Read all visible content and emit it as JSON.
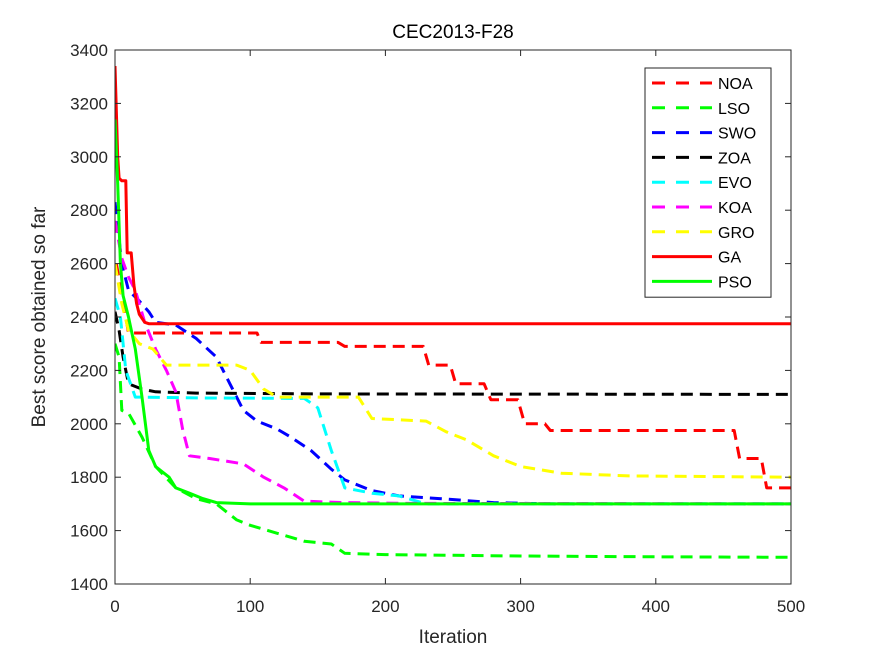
{
  "chart_data": {
    "type": "line",
    "title": "CEC2013-F28",
    "xlabel": "Iteration",
    "ylabel": "Best score obtained so far",
    "xlim": [
      0,
      500
    ],
    "ylim": [
      1400,
      3400
    ],
    "xticks": [
      0,
      100,
      200,
      300,
      400,
      500
    ],
    "yticks": [
      1400,
      1600,
      1800,
      2000,
      2200,
      2400,
      2600,
      2800,
      3000,
      3200,
      3400
    ],
    "xtick_labels": [
      "0",
      "100",
      "200",
      "300",
      "400",
      "500"
    ],
    "ytick_labels": [
      "1400",
      "1600",
      "1800",
      "2000",
      "2200",
      "2400",
      "2600",
      "2800",
      "3000",
      "3200",
      "3400"
    ],
    "grid": false,
    "legend_position": "top-right",
    "series": [
      {
        "name": "NOA",
        "color": "#ff0000",
        "dash": "dashed",
        "points": [
          [
            1,
            2600
          ],
          [
            5,
            2480
          ],
          [
            8,
            2400
          ],
          [
            10,
            2340
          ],
          [
            105,
            2340
          ],
          [
            108,
            2305
          ],
          [
            165,
            2305
          ],
          [
            170,
            2290
          ],
          [
            228,
            2290
          ],
          [
            232,
            2220
          ],
          [
            248,
            2220
          ],
          [
            252,
            2150
          ],
          [
            273,
            2150
          ],
          [
            278,
            2090
          ],
          [
            298,
            2090
          ],
          [
            303,
            2000
          ],
          [
            318,
            2000
          ],
          [
            322,
            1975
          ],
          [
            458,
            1975
          ],
          [
            462,
            1870
          ],
          [
            478,
            1870
          ],
          [
            482,
            1760
          ],
          [
            500,
            1760
          ]
        ]
      },
      {
        "name": "LSO",
        "color": "#00ff00",
        "dash": "dashed",
        "points": [
          [
            0,
            2300
          ],
          [
            3,
            2250
          ],
          [
            5,
            2050
          ],
          [
            10,
            2040
          ],
          [
            20,
            1950
          ],
          [
            30,
            1840
          ],
          [
            45,
            1760
          ],
          [
            60,
            1720
          ],
          [
            75,
            1700
          ],
          [
            90,
            1640
          ],
          [
            100,
            1620
          ],
          [
            120,
            1590
          ],
          [
            140,
            1560
          ],
          [
            160,
            1550
          ],
          [
            170,
            1515
          ],
          [
            200,
            1510
          ],
          [
            300,
            1505
          ],
          [
            400,
            1502
          ],
          [
            500,
            1500
          ]
        ]
      },
      {
        "name": "SWO",
        "color": "#0000ff",
        "dash": "dashed",
        "points": [
          [
            0,
            2830
          ],
          [
            5,
            2600
          ],
          [
            10,
            2500
          ],
          [
            18,
            2460
          ],
          [
            25,
            2420
          ],
          [
            30,
            2380
          ],
          [
            45,
            2370
          ],
          [
            60,
            2320
          ],
          [
            75,
            2250
          ],
          [
            85,
            2150
          ],
          [
            95,
            2050
          ],
          [
            105,
            2010
          ],
          [
            120,
            1980
          ],
          [
            130,
            1950
          ],
          [
            145,
            1900
          ],
          [
            160,
            1830
          ],
          [
            170,
            1790
          ],
          [
            190,
            1750
          ],
          [
            210,
            1730
          ],
          [
            240,
            1720
          ],
          [
            280,
            1705
          ],
          [
            320,
            1700
          ],
          [
            500,
            1700
          ]
        ]
      },
      {
        "name": "ZOA",
        "color": "#000000",
        "dash": "dashed",
        "points": [
          [
            0,
            2420
          ],
          [
            3,
            2350
          ],
          [
            6,
            2250
          ],
          [
            10,
            2150
          ],
          [
            20,
            2130
          ],
          [
            30,
            2120
          ],
          [
            60,
            2115
          ],
          [
            150,
            2112
          ],
          [
            500,
            2110
          ]
        ]
      },
      {
        "name": "EVO",
        "color": "#00ffff",
        "dash": "dashed",
        "points": [
          [
            0,
            2470
          ],
          [
            4,
            2400
          ],
          [
            8,
            2200
          ],
          [
            15,
            2100
          ],
          [
            60,
            2097
          ],
          [
            140,
            2095
          ],
          [
            150,
            2060
          ],
          [
            160,
            1900
          ],
          [
            170,
            1760
          ],
          [
            190,
            1740
          ],
          [
            210,
            1730
          ],
          [
            230,
            1700
          ],
          [
            500,
            1700
          ]
        ]
      },
      {
        "name": "KOA",
        "color": "#ff00ff",
        "dash": "dashed",
        "points": [
          [
            0,
            2760
          ],
          [
            5,
            2620
          ],
          [
            10,
            2550
          ],
          [
            15,
            2500
          ],
          [
            22,
            2380
          ],
          [
            30,
            2280
          ],
          [
            38,
            2200
          ],
          [
            45,
            2120
          ],
          [
            50,
            1980
          ],
          [
            55,
            1880
          ],
          [
            70,
            1870
          ],
          [
            95,
            1850
          ],
          [
            110,
            1800
          ],
          [
            125,
            1760
          ],
          [
            140,
            1710
          ],
          [
            170,
            1705
          ],
          [
            220,
            1702
          ],
          [
            500,
            1700
          ]
        ]
      },
      {
        "name": "GRO",
        "color": "#ffff00",
        "dash": "dashed",
        "points": [
          [
            0,
            2600
          ],
          [
            5,
            2450
          ],
          [
            10,
            2350
          ],
          [
            18,
            2300
          ],
          [
            28,
            2280
          ],
          [
            38,
            2220
          ],
          [
            90,
            2220
          ],
          [
            100,
            2200
          ],
          [
            110,
            2130
          ],
          [
            120,
            2100
          ],
          [
            180,
            2100
          ],
          [
            190,
            2020
          ],
          [
            230,
            2010
          ],
          [
            245,
            1970
          ],
          [
            260,
            1940
          ],
          [
            280,
            1880
          ],
          [
            300,
            1840
          ],
          [
            330,
            1815
          ],
          [
            380,
            1805
          ],
          [
            500,
            1800
          ]
        ]
      },
      {
        "name": "GA",
        "color": "#ff0000",
        "dash": "solid",
        "points": [
          [
            0,
            3340
          ],
          [
            2,
            3000
          ],
          [
            3,
            2920
          ],
          [
            5,
            2910
          ],
          [
            8,
            2910
          ],
          [
            9,
            2640
          ],
          [
            12,
            2640
          ],
          [
            14,
            2520
          ],
          [
            16,
            2450
          ],
          [
            18,
            2410
          ],
          [
            22,
            2380
          ],
          [
            25,
            2375
          ],
          [
            500,
            2375
          ]
        ]
      },
      {
        "name": "PSO",
        "color": "#00ff00",
        "dash": "solid",
        "points": [
          [
            0,
            3140
          ],
          [
            2,
            2900
          ],
          [
            4,
            2600
          ],
          [
            6,
            2480
          ],
          [
            10,
            2400
          ],
          [
            15,
            2280
          ],
          [
            20,
            2100
          ],
          [
            25,
            1900
          ],
          [
            30,
            1840
          ],
          [
            40,
            1800
          ],
          [
            45,
            1760
          ],
          [
            55,
            1740
          ],
          [
            65,
            1720
          ],
          [
            75,
            1705
          ],
          [
            100,
            1700
          ],
          [
            500,
            1700
          ]
        ]
      }
    ]
  }
}
